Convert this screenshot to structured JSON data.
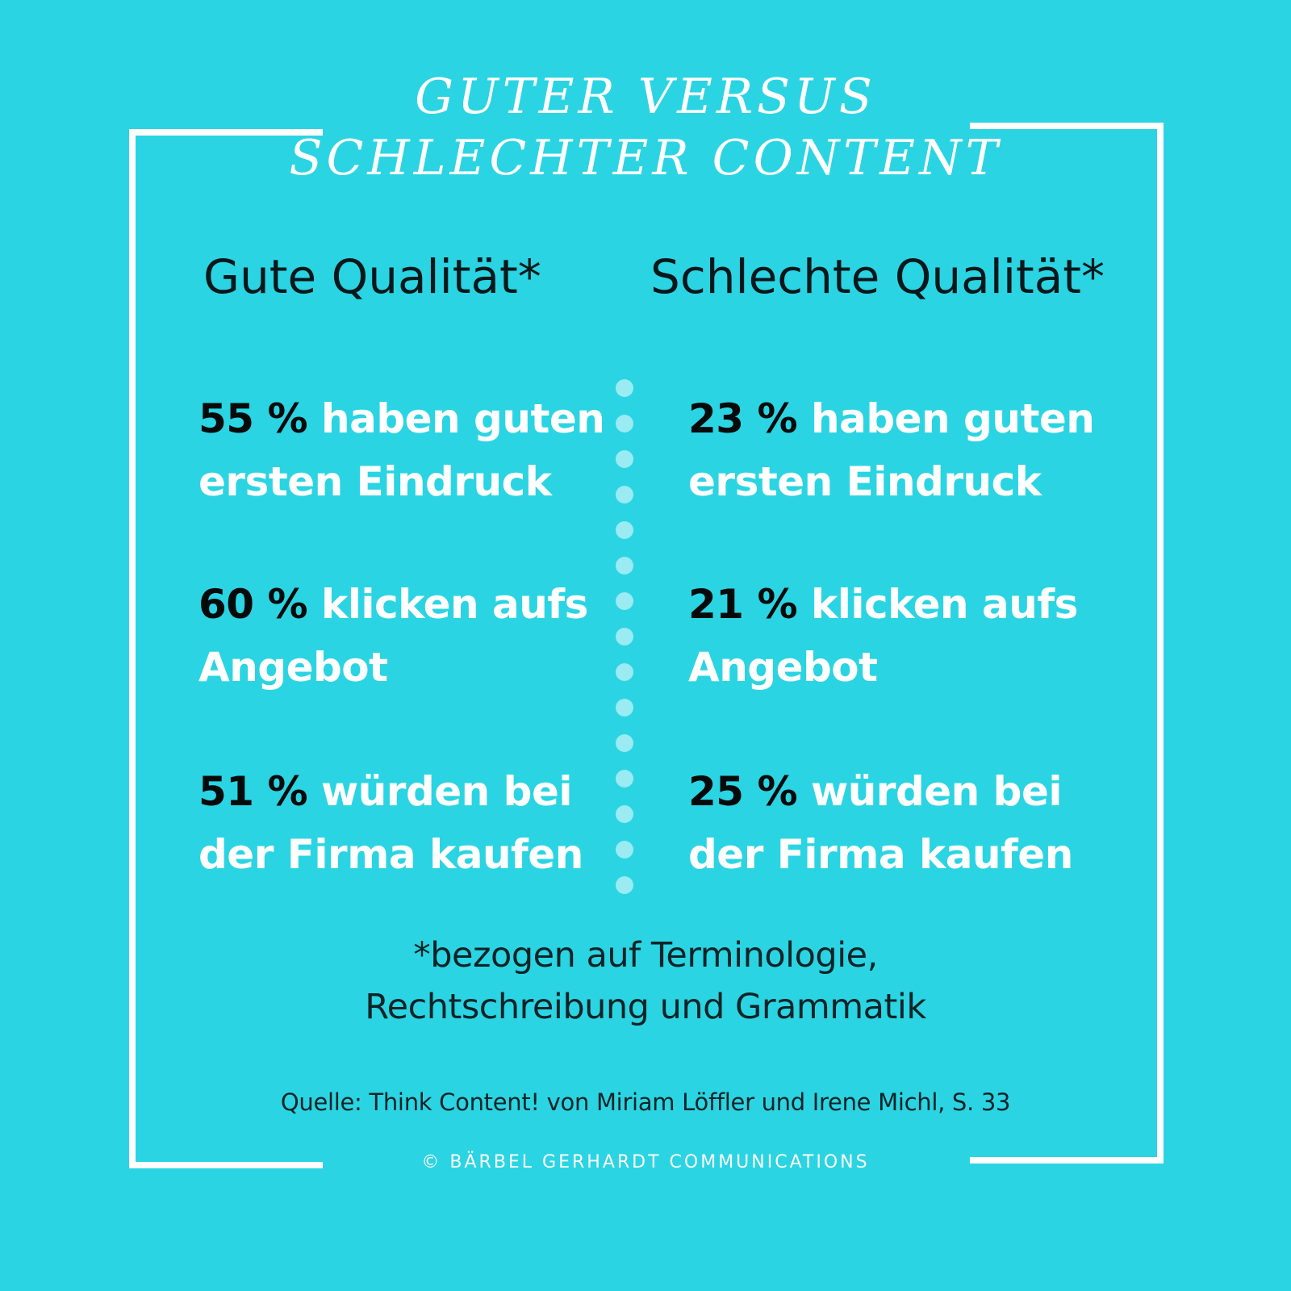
{
  "title": {
    "line1": "GUTER VERSUS",
    "line2": "SCHLECHTER CONTENT"
  },
  "columns": [
    {
      "heading": "Gute Qualität*",
      "stats": [
        {
          "percent": "55 %",
          "line1": "haben guten",
          "line2": "ersten Eindruck"
        },
        {
          "percent": "60 %",
          "line1": "klicken aufs",
          "line2": "Angebot"
        },
        {
          "percent": "51 %",
          "line1": "würden bei",
          "line2": "der Firma kaufen"
        }
      ]
    },
    {
      "heading": "Schlechte Qualität*",
      "stats": [
        {
          "percent": "23 %",
          "line1": "haben guten",
          "line2": "ersten Eindruck"
        },
        {
          "percent": "21 %",
          "line1": "klicken aufs",
          "line2": "Angebot"
        },
        {
          "percent": "25 %",
          "line1": "würden bei",
          "line2": "der Firma kaufen"
        }
      ]
    }
  ],
  "footnote": {
    "line1": "*bezogen auf Terminologie,",
    "line2": "Rechtschreibung und Grammatik"
  },
  "source": "Quelle: Think Content! von Miriam Löffler und Irene Michl, S. 33",
  "copyright": "© BÄRBEL GERHARDT COMMUNICATIONS",
  "colors": {
    "background": "#2bd4e2",
    "frame": "#ffffff",
    "dots": "#9aebf2"
  }
}
